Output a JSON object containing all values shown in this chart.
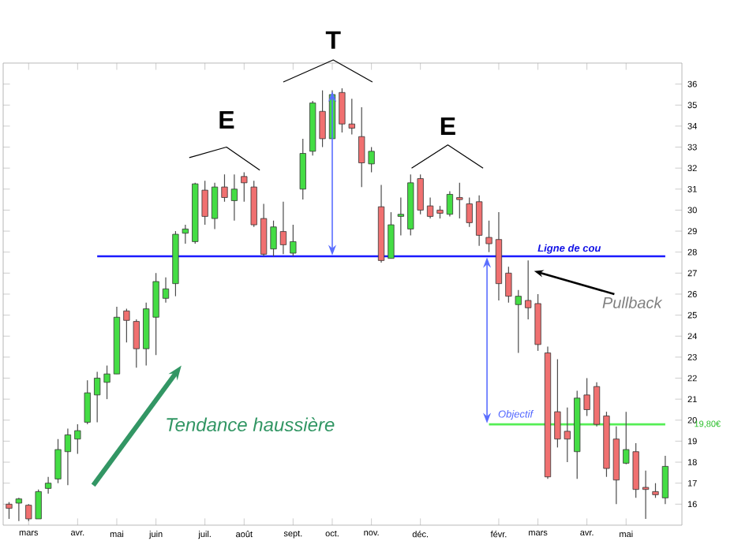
{
  "chart_data": {
    "type": "candlestick",
    "categories": [
      null,
      null,
      "mars",
      null,
      null,
      null,
      null,
      "avr.",
      null,
      null,
      null,
      "mai",
      null,
      null,
      null,
      "juin",
      null,
      null,
      null,
      null,
      "juil.",
      null,
      null,
      null,
      "août",
      null,
      null,
      null,
      null,
      "sept.",
      null,
      null,
      null,
      "oct.",
      null,
      null,
      null,
      "nov.",
      null,
      null,
      null,
      null,
      "déc.",
      null,
      null,
      null,
      null,
      null,
      null,
      null,
      "févr.",
      null,
      null,
      null,
      "mars",
      null,
      null,
      null,
      null,
      "avr.",
      null,
      null,
      null,
      "mai",
      null,
      null,
      null,
      null
    ],
    "ohlc": [
      [
        16.0,
        16.1,
        15.3,
        15.8
      ],
      [
        16.05,
        16.3,
        15.2,
        16.25
      ],
      [
        15.95,
        16.0,
        15.2,
        15.3
      ],
      [
        15.3,
        16.7,
        15.3,
        16.6
      ],
      [
        16.75,
        17.3,
        16.5,
        17.0
      ],
      [
        17.2,
        19.1,
        17.0,
        18.6
      ],
      [
        18.5,
        19.6,
        16.9,
        19.3
      ],
      [
        19.1,
        19.8,
        18.4,
        19.5
      ],
      [
        19.9,
        21.9,
        19.8,
        21.3
      ],
      [
        21.2,
        22.3,
        19.9,
        22.0
      ],
      [
        21.8,
        22.6,
        21.0,
        22.2
      ],
      [
        22.2,
        25.4,
        22.2,
        24.9
      ],
      [
        25.2,
        25.3,
        23.7,
        24.75
      ],
      [
        24.7,
        24.8,
        22.5,
        23.4
      ],
      [
        23.4,
        25.6,
        22.6,
        25.3
      ],
      [
        24.9,
        27.0,
        23.1,
        26.6
      ],
      [
        25.8,
        26.8,
        25.6,
        26.25
      ],
      [
        26.5,
        29.0,
        25.9,
        28.85
      ],
      [
        28.9,
        29.3,
        28.4,
        29.1
      ],
      [
        28.5,
        31.3,
        28.4,
        31.25
      ],
      [
        30.95,
        31.4,
        29.3,
        29.7
      ],
      [
        29.6,
        31.3,
        29.1,
        31.1
      ],
      [
        31.1,
        31.7,
        30.4,
        30.6
      ],
      [
        30.45,
        31.7,
        29.5,
        31.0
      ],
      [
        31.6,
        31.8,
        30.4,
        31.3
      ],
      [
        31.1,
        31.4,
        29.2,
        29.3
      ],
      [
        29.6,
        30.3,
        27.8,
        27.9
      ],
      [
        28.15,
        29.5,
        27.8,
        29.2
      ],
      [
        28.98,
        30.4,
        27.9,
        28.35
      ],
      [
        27.95,
        29.3,
        27.8,
        28.5
      ],
      [
        31.0,
        33.4,
        30.5,
        32.7
      ],
      [
        32.8,
        35.2,
        32.6,
        35.1
      ],
      [
        34.7,
        35.7,
        33.0,
        33.4
      ],
      [
        33.4,
        35.7,
        33.4,
        35.5
      ],
      [
        35.6,
        35.8,
        33.7,
        34.1
      ],
      [
        34.1,
        35.3,
        33.6,
        33.9
      ],
      [
        33.5,
        34.9,
        31.1,
        32.25
      ],
      [
        32.2,
        33.0,
        31.8,
        32.8
      ],
      [
        30.16,
        31.2,
        27.5,
        27.6
      ],
      [
        27.7,
        29.9,
        27.7,
        29.3
      ],
      [
        29.7,
        30.6,
        28.8,
        29.8
      ],
      [
        29.1,
        31.7,
        28.8,
        31.3
      ],
      [
        31.5,
        31.7,
        29.8,
        30.0
      ],
      [
        30.2,
        30.6,
        29.6,
        29.7
      ],
      [
        30.0,
        30.2,
        29.6,
        29.85
      ],
      [
        29.8,
        30.9,
        29.7,
        30.75
      ],
      [
        30.6,
        31.3,
        29.6,
        30.5
      ],
      [
        30.3,
        30.6,
        29.2,
        29.4
      ],
      [
        30.4,
        30.7,
        28.3,
        28.8
      ],
      [
        28.7,
        29.5,
        28.0,
        28.4
      ],
      [
        28.6,
        29.9,
        25.7,
        26.5
      ],
      [
        27.0,
        27.3,
        25.6,
        25.9
      ],
      [
        25.5,
        26.2,
        23.2,
        25.9
      ],
      [
        25.7,
        27.6,
        24.8,
        25.35
      ],
      [
        25.55,
        26.0,
        23.3,
        23.6
      ],
      [
        23.2,
        23.5,
        17.2,
        17.3
      ],
      [
        20.4,
        22.9,
        18.7,
        19.1
      ],
      [
        19.47,
        20.6,
        18.0,
        19.1
      ],
      [
        18.5,
        21.4,
        17.2,
        21.05
      ],
      [
        21.2,
        22.0,
        20.2,
        20.5
      ],
      [
        21.6,
        21.8,
        19.7,
        19.8
      ],
      [
        20.2,
        20.4,
        17.3,
        17.7
      ],
      [
        19.1,
        19.7,
        16.0,
        17.15
      ],
      [
        17.95,
        20.4,
        17.9,
        18.6
      ],
      [
        18.5,
        18.9,
        16.3,
        16.7
      ],
      [
        16.8,
        17.6,
        15.3,
        16.7
      ],
      [
        16.6,
        17.0,
        16.3,
        16.45
      ],
      [
        16.3,
        18.3,
        16.0,
        17.8
      ]
    ],
    "colors": [
      "#f07070",
      "#44dd44",
      "#f07070",
      "#44dd44",
      "#44dd44",
      "#44dd44",
      "#44dd44",
      "#44dd44",
      "#44dd44",
      "#44dd44",
      "#44dd44",
      "#44dd44",
      "#f07070",
      "#f07070",
      "#44dd44",
      "#44dd44",
      "#44dd44",
      "#44dd44",
      "#44dd44",
      "#44dd44",
      "#f07070",
      "#44dd44",
      "#f07070",
      "#44dd44",
      "#f07070",
      "#f07070",
      "#f07070",
      "#44dd44",
      "#f07070",
      "#44dd44",
      "#44dd44",
      "#44dd44",
      "#f07070",
      "#44dd44",
      "#f07070",
      "#f07070",
      "#f07070",
      "#44dd44",
      "#f07070",
      "#44dd44",
      "#44dd44",
      "#44dd44",
      "#f07070",
      "#f07070",
      "#f07070",
      "#44dd44",
      "#f07070",
      "#f07070",
      "#f07070",
      "#f07070",
      "#f07070",
      "#f07070",
      "#44dd44",
      "#f07070",
      "#f07070",
      "#f07070",
      "#f07070",
      "#f07070",
      "#44dd44",
      "#f07070",
      "#f07070",
      "#f07070",
      "#f07070",
      "#44dd44",
      "#f07070",
      "#f07070",
      "#f07070",
      "#44dd44"
    ],
    "series": [
      {
        "type": "line",
        "color": "#1a1aff",
        "values": [
          null,
          null,
          null,
          null,
          null,
          null,
          null,
          null,
          null,
          27.8,
          27.8,
          27.8,
          27.8,
          27.8,
          27.8,
          27.8,
          27.8,
          27.8,
          27.8,
          27.8,
          27.8,
          27.8,
          27.8,
          27.8,
          27.8,
          27.8,
          27.8,
          27.8,
          27.8,
          27.8,
          27.8,
          27.8,
          27.8,
          27.8,
          27.8,
          27.8,
          27.8,
          27.8,
          27.8,
          27.8,
          27.8,
          27.8,
          27.8,
          27.8,
          27.8,
          27.8,
          27.8,
          27.8,
          27.8,
          27.8,
          27.8,
          27.8,
          27.8,
          27.8,
          27.8,
          27.8,
          27.8,
          27.8,
          27.8,
          27.8,
          27.8,
          27.8,
          27.8,
          27.8,
          27.8,
          27.8,
          27.8,
          27.8
        ]
      },
      {
        "type": "line",
        "color": "#55ee55",
        "values": [
          null,
          null,
          null,
          null,
          null,
          null,
          null,
          null,
          null,
          null,
          null,
          null,
          null,
          null,
          null,
          null,
          null,
          null,
          null,
          null,
          null,
          null,
          null,
          null,
          null,
          null,
          null,
          null,
          null,
          null,
          null,
          null,
          null,
          null,
          null,
          null,
          null,
          null,
          null,
          null,
          null,
          null,
          null,
          null,
          null,
          null,
          null,
          null,
          null,
          19.8,
          19.8,
          19.8,
          19.8,
          19.8,
          19.8,
          19.8,
          19.8,
          19.8,
          19.8,
          19.8,
          19.8,
          19.8,
          19.8,
          19.8,
          19.8,
          19.8,
          19.8,
          19.8
        ]
      }
    ],
    "ylim": [
      15,
      37
    ],
    "yticks": [
      16,
      17,
      18,
      19,
      20,
      21,
      22,
      23,
      24,
      25,
      26,
      27,
      28,
      29,
      30,
      31,
      32,
      33,
      34,
      35,
      36
    ],
    "annotations": [
      "E",
      "T",
      "E",
      "Ligne de cou",
      "Pullback",
      {
        "text": "Objectif",
        "y": 19.8
      },
      "19,80€",
      "Tendance haussière"
    ]
  }
}
